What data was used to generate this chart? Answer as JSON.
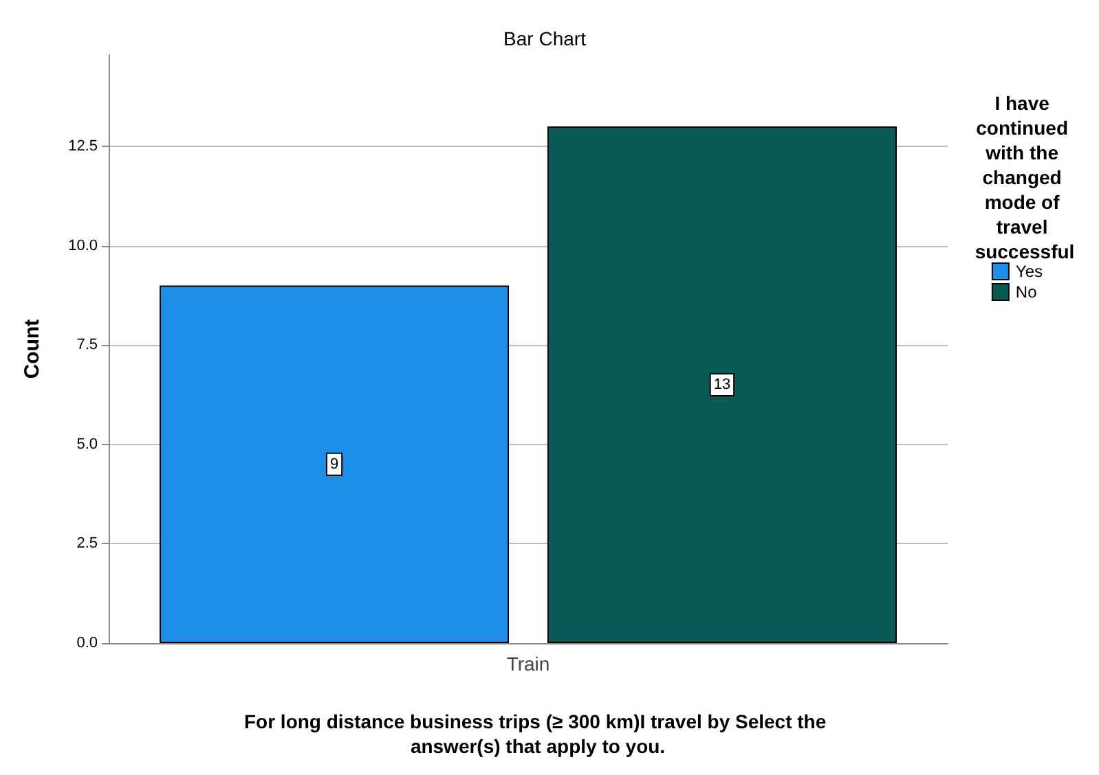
{
  "chart_data": {
    "type": "bar",
    "title": "Bar Chart",
    "xlabel": "For long distance business trips (≥ 300 km)I travel by Select the answer(s) that apply to you.",
    "ylabel": "Count",
    "legend_title": "I have continued with the changed mode of travel successful",
    "categories": [
      "Train"
    ],
    "series": [
      {
        "name": "Yes",
        "color": "#1e8fe6",
        "values": [
          9
        ]
      },
      {
        "name": "No",
        "color": "#0a5a56",
        "values": [
          13
        ]
      }
    ],
    "ylim": [
      0,
      14.8
    ],
    "yticks": [
      {
        "value": 0,
        "label": "0.0"
      },
      {
        "value": 2.5,
        "label": "2.5"
      },
      {
        "value": 5,
        "label": "5.0"
      },
      {
        "value": 7.5,
        "label": "7.5"
      },
      {
        "value": 10,
        "label": "10.0"
      },
      {
        "value": 12.5,
        "label": "12.5"
      }
    ],
    "grid": "y",
    "legend": "right",
    "data_labels": true
  }
}
